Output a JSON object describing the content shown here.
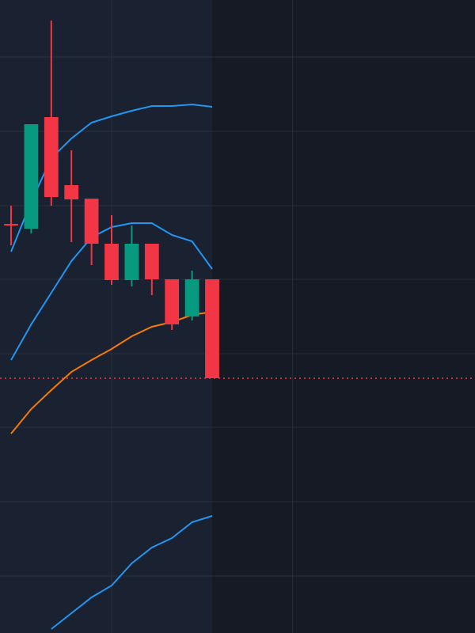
{
  "chart_data": {
    "type": "candlestick",
    "x": [
      0,
      1,
      2,
      3,
      4,
      5,
      6,
      7,
      8,
      9,
      10
    ],
    "open": [
      517,
      511,
      652,
      566,
      549,
      492,
      446,
      492,
      447,
      400,
      447
    ],
    "high": [
      540,
      643,
      774,
      610,
      549,
      528,
      515,
      492,
      447,
      458,
      447
    ],
    "low": [
      490,
      505,
      540,
      494,
      465,
      440,
      438,
      427,
      383,
      395,
      322
    ],
    "close": [
      515,
      643,
      551,
      548,
      492,
      446,
      492,
      447,
      390,
      447,
      322
    ],
    "up_color": "#089981",
    "down_color": "#f23645",
    "series": [
      {
        "color": "#2196f3",
        "values": [
          482,
          545,
          600,
          625,
          645,
          653,
          660,
          666,
          666,
          668,
          665
        ]
      },
      {
        "color": "#2196f3",
        "values": [
          345,
          390,
          430,
          470,
          500,
          513,
          518,
          518,
          503,
          495,
          460
        ]
      },
      {
        "color": "#f57c00",
        "values": [
          252,
          283,
          307,
          330,
          345,
          359,
          375,
          387,
          393,
          402,
          406
        ]
      },
      {
        "color": "#2196f3",
        "values": [
          null,
          null,
          5,
          25,
          45,
          60,
          88,
          108,
          120,
          140,
          148
        ]
      }
    ],
    "last_price": 322,
    "last_price_color": "#f23645",
    "xlim": [
      -0.551,
      23.07
    ],
    "ylim": [
      0,
      800
    ],
    "xticks": [
      5,
      14
    ],
    "yticks": [
      72,
      166,
      260,
      353,
      447,
      540,
      634,
      728
    ],
    "grid": true
  }
}
